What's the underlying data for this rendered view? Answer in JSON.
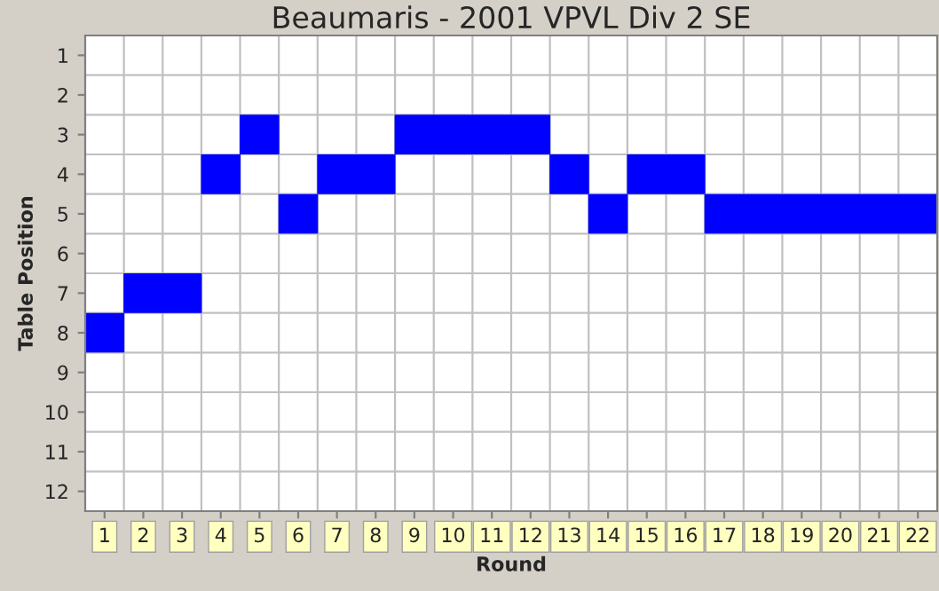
{
  "chart_data": {
    "type": "scatter",
    "title": "Beaumaris - 2001 VPVL Div 2 SE",
    "xlabel": "Round",
    "ylabel": "Table Position",
    "categories": [
      "1",
      "2",
      "3",
      "4",
      "5",
      "6",
      "7",
      "8",
      "9",
      "10",
      "11",
      "12",
      "13",
      "14",
      "15",
      "16",
      "17",
      "18",
      "19",
      "20",
      "21",
      "22"
    ],
    "series": [
      {
        "color": "#0000ff",
        "values": [
          8,
          7,
          7,
          4,
          3,
          5,
          4,
          4,
          3,
          3,
          3,
          3,
          4,
          5,
          4,
          4,
          5,
          5,
          5,
          5,
          5,
          5
        ]
      }
    ],
    "ylim": [
      12.5,
      0.5
    ],
    "yticks": [
      1,
      2,
      3,
      4,
      5,
      6,
      7,
      8,
      9,
      10,
      11,
      12
    ],
    "marker": "square",
    "grid": true,
    "legend": false
  }
}
